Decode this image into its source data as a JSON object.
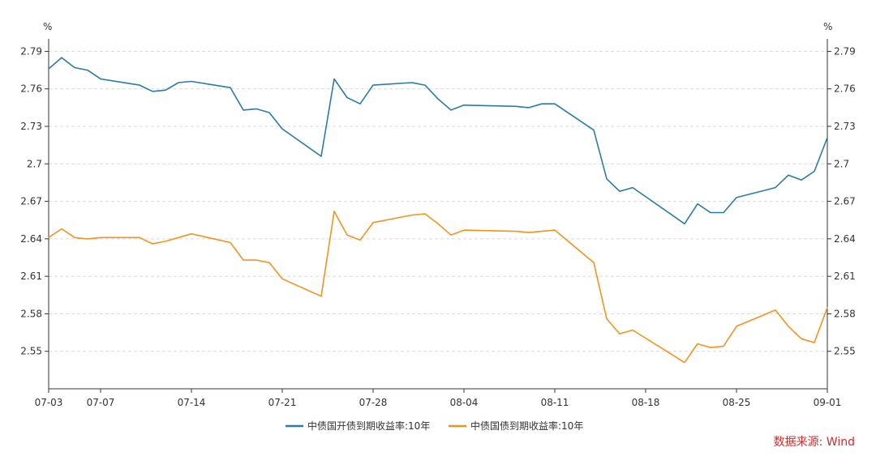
{
  "chart_data": {
    "type": "line",
    "unit_left": "%",
    "unit_right": "%",
    "ylim": [
      2.52,
      2.8
    ],
    "yticks": [
      2.55,
      2.58,
      2.61,
      2.64,
      2.67,
      2.7,
      2.73,
      2.76,
      2.79
    ],
    "ytick_labels": [
      "2.55",
      "2.58",
      "2.61",
      "2.64",
      "2.67",
      "2.7",
      "2.73",
      "2.76",
      "2.79"
    ],
    "xlim": [
      "2025-07-03",
      "2025-09-01"
    ],
    "xticks": [
      "2025-07-03",
      "2025-07-07",
      "2025-07-14",
      "2025-07-21",
      "2025-07-28",
      "2025-08-04",
      "2025-08-11",
      "2025-08-18",
      "2025-08-25",
      "2025-09-01"
    ],
    "xtick_labels": [
      "07-03",
      "07-07",
      "07-14",
      "07-21",
      "07-28",
      "08-04",
      "08-11",
      "08-18",
      "08-25",
      "09-01"
    ],
    "grid": true,
    "legend_position": "bottom",
    "source": "数据来源: Wind",
    "series": [
      {
        "name": "中债国开债到期收益率:10年",
        "color": "#2b7ba8",
        "x": [
          "2025-07-03",
          "2025-07-04",
          "2025-07-05",
          "2025-07-06",
          "2025-07-07",
          "2025-07-10",
          "2025-07-11",
          "2025-07-12",
          "2025-07-13",
          "2025-07-14",
          "2025-07-17",
          "2025-07-18",
          "2025-07-19",
          "2025-07-20",
          "2025-07-21",
          "2025-07-24",
          "2025-07-25",
          "2025-07-26",
          "2025-07-27",
          "2025-07-28",
          "2025-07-31",
          "2025-08-01",
          "2025-08-02",
          "2025-08-03",
          "2025-08-04",
          "2025-08-08",
          "2025-08-09",
          "2025-08-10",
          "2025-08-11",
          "2025-08-14",
          "2025-08-15",
          "2025-08-16",
          "2025-08-17",
          "2025-08-21",
          "2025-08-22",
          "2025-08-23",
          "2025-08-24",
          "2025-08-25",
          "2025-08-28",
          "2025-08-29",
          "2025-08-30",
          "2025-08-31",
          "2025-09-01"
        ],
        "values": [
          2.776,
          2.785,
          2.777,
          2.775,
          2.768,
          2.763,
          2.758,
          2.759,
          2.765,
          2.766,
          2.761,
          2.743,
          2.744,
          2.741,
          2.728,
          2.706,
          2.768,
          2.753,
          2.748,
          2.763,
          2.765,
          2.763,
          2.752,
          2.743,
          2.747,
          2.746,
          2.745,
          2.748,
          2.748,
          2.727,
          2.688,
          2.678,
          2.681,
          2.652,
          2.668,
          2.661,
          2.661,
          2.673,
          2.681,
          2.691,
          2.687,
          2.694,
          2.721
        ]
      },
      {
        "name": "中债国债到期收益率:10年",
        "color": "#f5921e",
        "x": [
          "2025-07-03",
          "2025-07-04",
          "2025-07-05",
          "2025-07-06",
          "2025-07-07",
          "2025-07-10",
          "2025-07-11",
          "2025-07-12",
          "2025-07-13",
          "2025-07-14",
          "2025-07-17",
          "2025-07-18",
          "2025-07-19",
          "2025-07-20",
          "2025-07-21",
          "2025-07-24",
          "2025-07-25",
          "2025-07-26",
          "2025-07-27",
          "2025-07-28",
          "2025-07-31",
          "2025-08-01",
          "2025-08-02",
          "2025-08-03",
          "2025-08-04",
          "2025-08-08",
          "2025-08-09",
          "2025-08-10",
          "2025-08-11",
          "2025-08-14",
          "2025-08-15",
          "2025-08-16",
          "2025-08-17",
          "2025-08-21",
          "2025-08-22",
          "2025-08-23",
          "2025-08-24",
          "2025-08-25",
          "2025-08-28",
          "2025-08-29",
          "2025-08-30",
          "2025-08-31",
          "2025-09-01"
        ],
        "values": [
          2.641,
          2.648,
          2.641,
          2.64,
          2.641,
          2.641,
          2.636,
          2.638,
          2.641,
          2.644,
          2.637,
          2.623,
          2.623,
          2.621,
          2.608,
          2.594,
          2.662,
          2.643,
          2.639,
          2.653,
          2.659,
          2.66,
          2.652,
          2.643,
          2.647,
          2.646,
          2.645,
          2.646,
          2.647,
          2.621,
          2.576,
          2.564,
          2.567,
          2.541,
          2.556,
          2.553,
          2.554,
          2.57,
          2.583,
          2.57,
          2.56,
          2.557,
          2.585
        ]
      }
    ]
  }
}
